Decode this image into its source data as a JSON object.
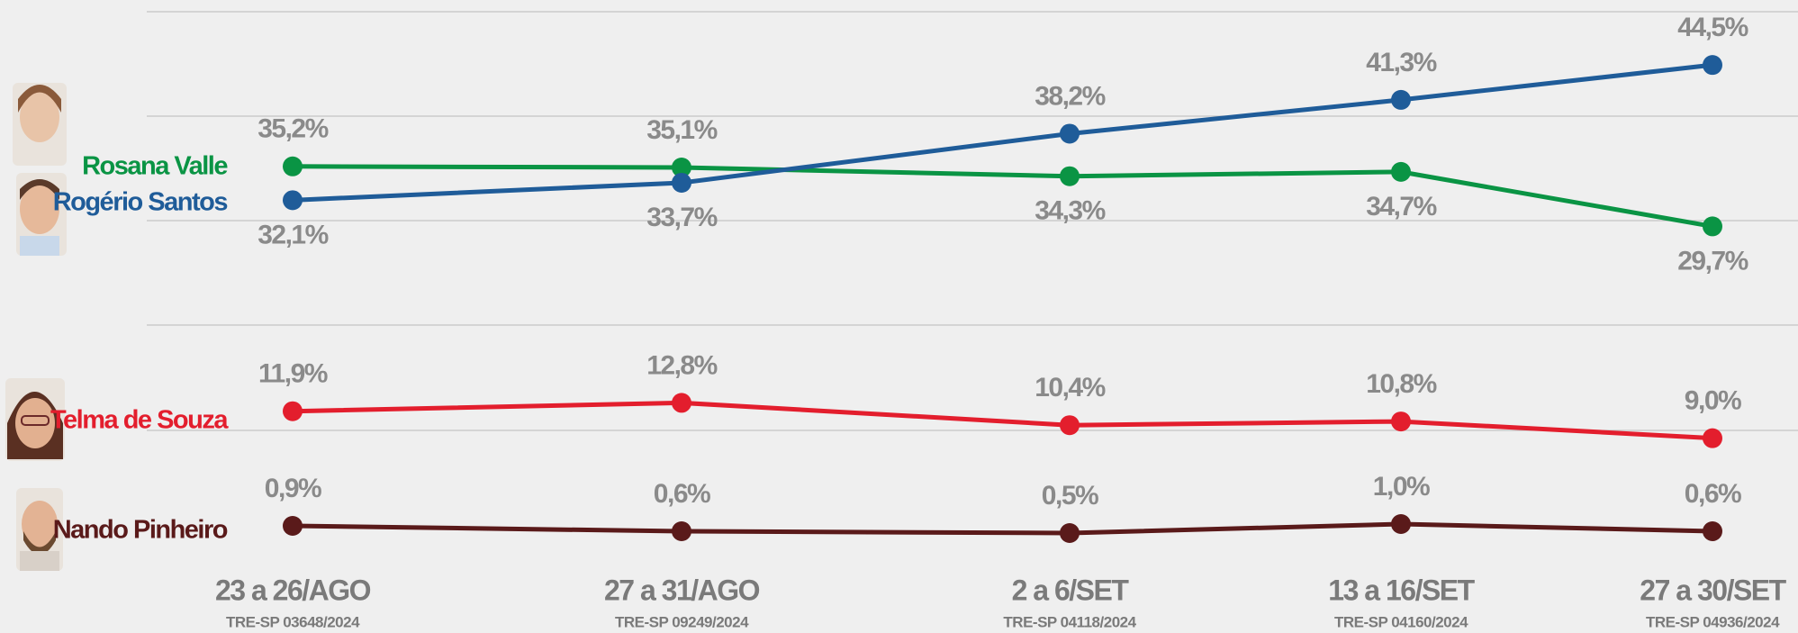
{
  "chart_data": {
    "type": "line",
    "categories": [
      "23 a 26/AGO",
      "27 a 31/AGO",
      "2 a 6/SET",
      "13 a 16/SET",
      "27 a 30/SET"
    ],
    "category_subtitles": [
      "TRE-SP 03648/2024",
      "TRE-SP 09249/2024",
      "TRE-SP 04118/2024",
      "TRE-SP 04160/2024",
      "TRE-SP 04936/2024"
    ],
    "panels": [
      {
        "ylim": [
          28,
          46
        ],
        "series": [
          {
            "name": "Rosana Valle",
            "color": "#0a9444",
            "values": [
              35.2,
              35.1,
              34.3,
              34.7,
              29.7
            ],
            "value_labels": [
              "35,2%",
              "35,1%",
              "34,3%",
              "34,7%",
              "29,7%"
            ]
          },
          {
            "name": "Rogério Santos",
            "color": "#1f5c99",
            "values": [
              32.1,
              33.7,
              38.2,
              41.3,
              44.5
            ],
            "value_labels": [
              "32,1%",
              "33,7%",
              "38,2%",
              "41,3%",
              "44,5%"
            ]
          }
        ]
      },
      {
        "ylim": [
          8,
          14
        ],
        "series": [
          {
            "name": "Telma de Souza",
            "color": "#e31e2d",
            "values": [
              11.9,
              12.8,
              10.4,
              10.8,
              9.0
            ],
            "value_labels": [
              "11,9%",
              "12,8%",
              "10,4%",
              "10,8%",
              "9,0%"
            ]
          }
        ]
      },
      {
        "ylim": [
          0,
          2
        ],
        "series": [
          {
            "name": "Nando Pinheiro",
            "color": "#5a1a1a",
            "values": [
              0.9,
              0.6,
              0.5,
              1.0,
              0.6
            ],
            "value_labels": [
              "0,9%",
              "0,6%",
              "0,5%",
              "1,0%",
              "0,6%"
            ]
          }
        ]
      }
    ]
  }
}
